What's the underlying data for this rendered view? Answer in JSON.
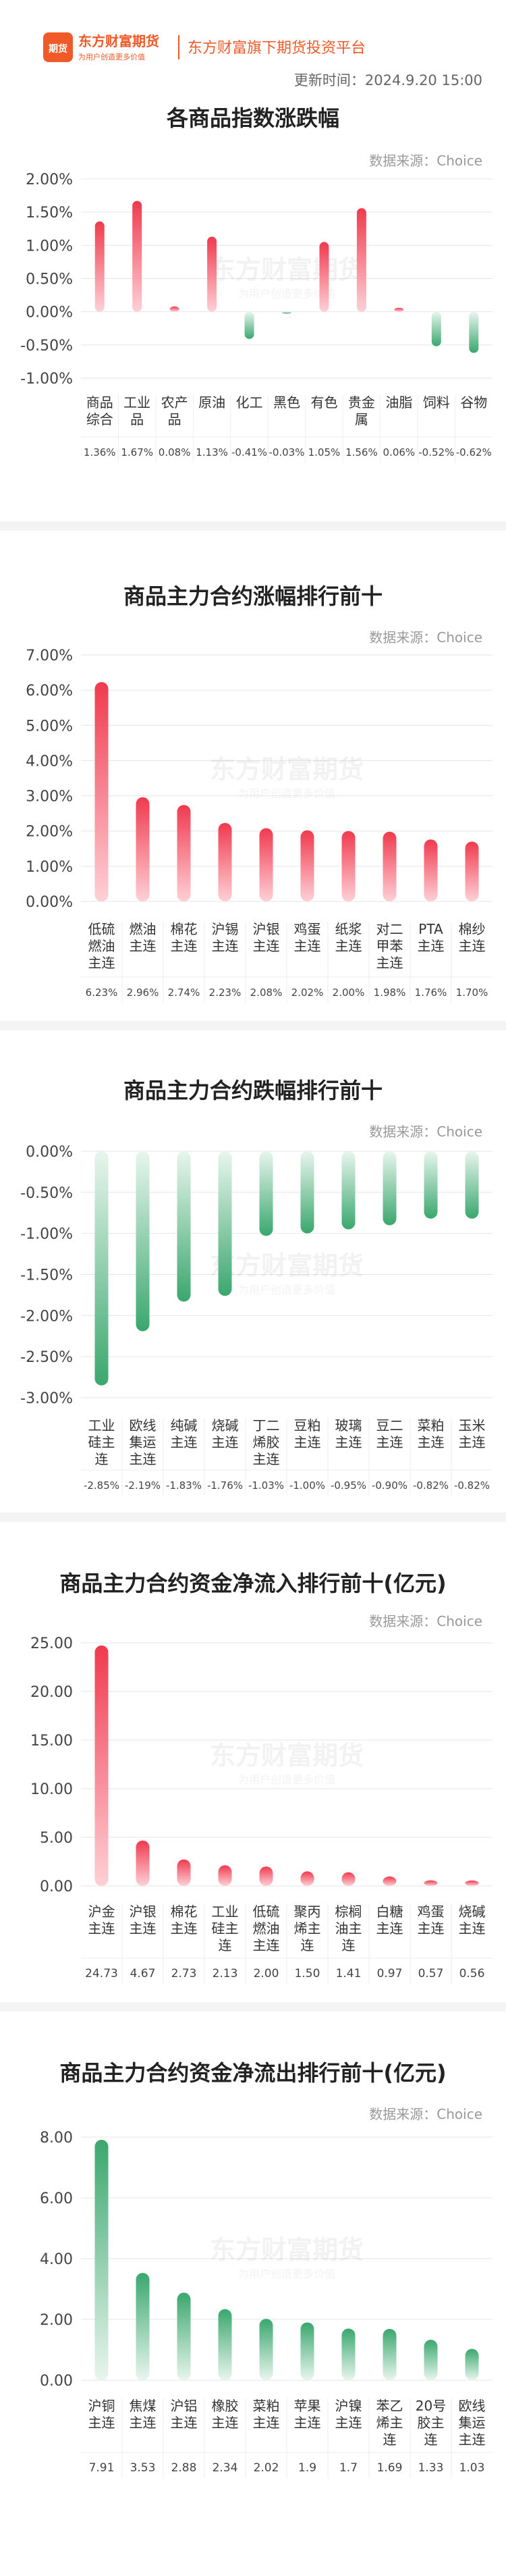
{
  "header": {
    "brand_cn": "东方财富期货",
    "brand_slogan": "为用户创造更多价值",
    "brand_badge": "期货",
    "platform_name": "东方财富旗下期货投资平台",
    "update_time": "更新时间：2024.9.20 15:00"
  },
  "watermark": {
    "text": "东方财富期货",
    "sub": "为用户创造更多价值"
  },
  "colors": {
    "up": "#f03a4e",
    "down": "#3aa76d",
    "brand": "#f05a28"
  },
  "chart_data": [
    {
      "type": "bar",
      "title": "各商品指数涨跌幅",
      "source": "数据来源：Choice",
      "categories": [
        [
          "商品",
          "综合"
        ],
        [
          "工业",
          "品"
        ],
        [
          "农产",
          "品"
        ],
        [
          "原油"
        ],
        [
          "化工"
        ],
        [
          "黑色"
        ],
        [
          "有色"
        ],
        [
          "贵金",
          "属"
        ],
        [
          "油脂"
        ],
        [
          "饲料"
        ],
        [
          "谷物"
        ]
      ],
      "values": [
        1.36,
        1.67,
        0.08,
        1.13,
        -0.41,
        -0.03,
        1.05,
        1.56,
        0.06,
        -0.52,
        -0.62
      ],
      "value_labels": [
        "1.36%",
        "1.67%",
        "0.08%",
        "1.13%",
        "-0.41%",
        "-0.03%",
        "1.05%",
        "1.56%",
        "0.06%",
        "-0.52%",
        "-0.62%"
      ],
      "yticks": [
        "2.00%",
        "1.50%",
        "1.00%",
        "0.50%",
        "0.00%",
        "-0.50%",
        "-1.00%"
      ],
      "ylim": [
        -1.0,
        2.0
      ]
    },
    {
      "type": "bar",
      "title": "商品主力合约涨幅排行前十",
      "source": "数据来源：Choice",
      "categories": [
        [
          "低硫",
          "燃油",
          "主连"
        ],
        [
          "燃油",
          "主连"
        ],
        [
          "棉花",
          "主连"
        ],
        [
          "沪锡",
          "主连"
        ],
        [
          "沪银",
          "主连"
        ],
        [
          "鸡蛋",
          "主连"
        ],
        [
          "纸浆",
          "主连"
        ],
        [
          "对二",
          "甲苯",
          "主连"
        ],
        [
          "PTA",
          "主连"
        ],
        [
          "棉纱",
          "主连"
        ]
      ],
      "values": [
        6.23,
        2.96,
        2.74,
        2.23,
        2.08,
        2.02,
        2.0,
        1.98,
        1.76,
        1.7
      ],
      "value_labels": [
        "6.23%",
        "2.96%",
        "2.74%",
        "2.23%",
        "2.08%",
        "2.02%",
        "2.00%",
        "1.98%",
        "1.76%",
        "1.70%"
      ],
      "yticks": [
        "7.00%",
        "6.00%",
        "5.00%",
        "4.00%",
        "3.00%",
        "2.00%",
        "1.00%",
        "0.00%"
      ],
      "ylim": [
        0,
        7
      ]
    },
    {
      "type": "bar",
      "title": "商品主力合约跌幅排行前十",
      "source": "数据来源：Choice",
      "categories": [
        [
          "工业",
          "硅主",
          "连"
        ],
        [
          "欧线",
          "集运",
          "主连"
        ],
        [
          "纯碱",
          "主连"
        ],
        [
          "烧碱",
          "主连"
        ],
        [
          "丁二",
          "烯胶",
          "主连"
        ],
        [
          "豆粕",
          "主连"
        ],
        [
          "玻璃",
          "主连"
        ],
        [
          "豆二",
          "主连"
        ],
        [
          "菜粕",
          "主连"
        ],
        [
          "玉米",
          "主连"
        ]
      ],
      "values": [
        -2.85,
        -2.19,
        -1.83,
        -1.76,
        -1.03,
        -1.0,
        -0.95,
        -0.9,
        -0.82,
        -0.82
      ],
      "value_labels": [
        "-2.85%",
        "-2.19%",
        "-1.83%",
        "-1.76%",
        "-1.03%",
        "-1.00%",
        "-0.95%",
        "-0.90%",
        "-0.82%",
        "-0.82%"
      ],
      "yticks": [
        "0.00%",
        "-0.50%",
        "-1.00%",
        "-1.50%",
        "-2.00%",
        "-2.50%",
        "-3.00%"
      ],
      "ylim": [
        -3,
        0
      ]
    },
    {
      "type": "bar",
      "title": "商品主力合约资金净流入排行前十(亿元)",
      "source": "数据来源：Choice",
      "categories": [
        [
          "沪金",
          "主连"
        ],
        [
          "沪银",
          "主连"
        ],
        [
          "棉花",
          "主连"
        ],
        [
          "工业",
          "硅主",
          "连"
        ],
        [
          "低硫",
          "燃油",
          "主连"
        ],
        [
          "聚丙",
          "烯主",
          "连"
        ],
        [
          "棕榈",
          "油主",
          "连"
        ],
        [
          "白糖",
          "主连"
        ],
        [
          "鸡蛋",
          "主连"
        ],
        [
          "烧碱",
          "主连"
        ]
      ],
      "values": [
        24.73,
        4.67,
        2.73,
        2.13,
        2.0,
        1.5,
        1.41,
        0.97,
        0.57,
        0.56
      ],
      "value_labels": [
        "24.73",
        "4.67",
        "2.73",
        "2.13",
        "2.00",
        "1.50",
        "1.41",
        "0.97",
        "0.57",
        "0.56"
      ],
      "yticks": [
        "25.00",
        "20.00",
        "15.00",
        "10.00",
        "5.00",
        "0.00"
      ],
      "ylim": [
        0,
        25
      ]
    },
    {
      "type": "bar",
      "title": "商品主力合约资金净流出排行前十(亿元)",
      "source": "数据来源：Choice",
      "categories": [
        [
          "沪铜",
          "主连"
        ],
        [
          "焦煤",
          "主连"
        ],
        [
          "沪铝",
          "主连"
        ],
        [
          "橡胶",
          "主连"
        ],
        [
          "菜粕",
          "主连"
        ],
        [
          "苹果",
          "主连"
        ],
        [
          "沪镍",
          "主连"
        ],
        [
          "苯乙",
          "烯主",
          "连"
        ],
        [
          "20号",
          "胶主",
          "连"
        ],
        [
          "欧线",
          "集运",
          "主连"
        ]
      ],
      "values": [
        7.91,
        3.53,
        2.88,
        2.34,
        2.02,
        1.9,
        1.7,
        1.69,
        1.33,
        1.03
      ],
      "value_labels": [
        "7.91",
        "3.53",
        "2.88",
        "2.34",
        "2.02",
        "1.9",
        "1.7",
        "1.69",
        "1.33",
        "1.03"
      ],
      "yticks": [
        "8.00",
        "6.00",
        "4.00",
        "2.00",
        "0.00"
      ],
      "ylim": [
        0,
        8
      ],
      "bar_color": "down"
    }
  ]
}
